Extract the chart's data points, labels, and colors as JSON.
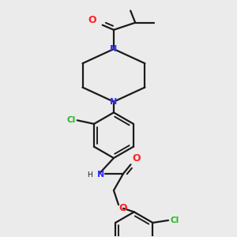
{
  "bg_color": "#ebebeb",
  "bond_color": "#1a1a1a",
  "N_color": "#3333ff",
  "O_color": "#ff2020",
  "Cl_color": "#22bb22",
  "lw": 1.6,
  "fs": 7.5,
  "xlim": [
    0.0,
    1.0
  ],
  "ylim": [
    0.0,
    1.0
  ]
}
